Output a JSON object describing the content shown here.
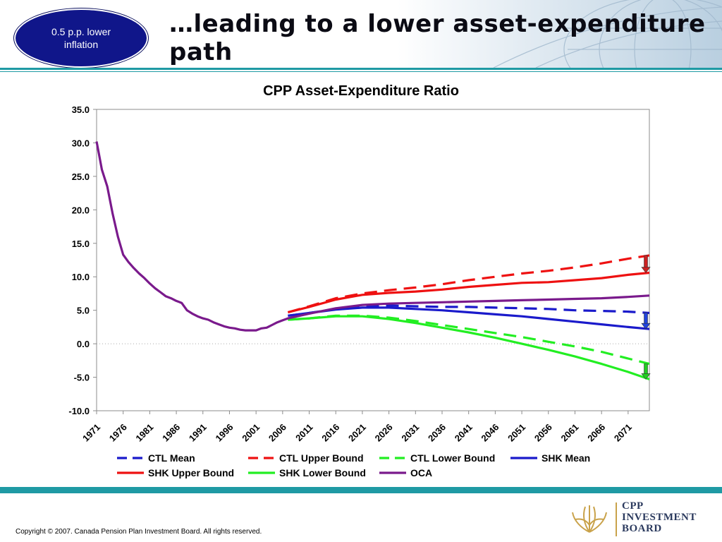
{
  "header": {
    "badge_text": "0.5 p.p. lower inflation",
    "title": "…leading to a lower asset-expenditure path"
  },
  "footer": {
    "copyright": "Copyright © 2007. Canada Pension Plan Investment Board. All rights reserved.",
    "logo_lines": [
      "CPP",
      "INVESTMENT",
      "BOARD"
    ]
  },
  "colors": {
    "accent_rule": "#1f9aa4",
    "badge": "#10168a",
    "ctl_mean": "#1a1acb",
    "ctl_upper": "#ee1111",
    "ctl_lower": "#22ee22",
    "shk_mean": "#1a1acb",
    "shk_upper": "#ee1111",
    "shk_lower": "#22ee22",
    "oca": "#7a1a8c",
    "arrow_red": "#cc2222",
    "arrow_blue": "#2244dd",
    "arrow_green": "#22cc22"
  },
  "chart_data": {
    "type": "line",
    "title": "CPP Asset-Expenditure Ratio",
    "xlabel": "",
    "ylabel": "",
    "ylim": [
      -10,
      35
    ],
    "yticks": [
      "35.0",
      "30.0",
      "25.0",
      "20.0",
      "15.0",
      "10.0",
      "5.0",
      "0.0",
      "-5.0",
      "-10.0"
    ],
    "xlim": [
      1971,
      2075
    ],
    "xticks": [
      "1971",
      "1976",
      "1981",
      "1986",
      "1991",
      "1996",
      "2001",
      "2006",
      "2011",
      "2016",
      "2021",
      "2026",
      "2031",
      "2036",
      "2041",
      "2046",
      "2051",
      "2056",
      "2061",
      "2066",
      "2071"
    ],
    "grid": "horizontal dotted at 0.0",
    "legend_position": "bottom",
    "series": [
      {
        "name": "CTL Mean",
        "style": "dashed",
        "color_key": "ctl_mean",
        "x": [
          2007,
          2011,
          2016,
          2021,
          2026,
          2031,
          2036,
          2041,
          2046,
          2051,
          2056,
          2061,
          2066,
          2071,
          2075
        ],
        "y": [
          4.2,
          4.6,
          5.2,
          5.6,
          5.7,
          5.6,
          5.5,
          5.5,
          5.4,
          5.3,
          5.2,
          5.0,
          4.9,
          4.8,
          4.6
        ]
      },
      {
        "name": "CTL Upper Bound",
        "style": "dashed",
        "color_key": "ctl_upper",
        "x": [
          2007,
          2011,
          2016,
          2021,
          2026,
          2031,
          2036,
          2041,
          2046,
          2051,
          2056,
          2061,
          2066,
          2071,
          2075
        ],
        "y": [
          4.7,
          5.6,
          6.8,
          7.5,
          8.0,
          8.4,
          8.9,
          9.5,
          10.0,
          10.5,
          10.9,
          11.4,
          12.0,
          12.7,
          13.2
        ]
      },
      {
        "name": "CTL Lower Bound",
        "style": "dashed",
        "color_key": "ctl_lower",
        "x": [
          2007,
          2011,
          2016,
          2021,
          2026,
          2031,
          2036,
          2041,
          2046,
          2051,
          2056,
          2061,
          2066,
          2071,
          2075
        ],
        "y": [
          3.6,
          3.8,
          4.2,
          4.2,
          3.9,
          3.4,
          2.8,
          2.2,
          1.6,
          1.0,
          0.3,
          -0.4,
          -1.2,
          -2.2,
          -3.0
        ]
      },
      {
        "name": "SHK Mean",
        "style": "solid",
        "color_key": "shk_mean",
        "x": [
          2007,
          2011,
          2016,
          2021,
          2026,
          2031,
          2036,
          2041,
          2046,
          2051,
          2056,
          2061,
          2066,
          2071,
          2075
        ],
        "y": [
          4.2,
          4.6,
          5.1,
          5.4,
          5.4,
          5.2,
          5.0,
          4.7,
          4.4,
          4.1,
          3.7,
          3.3,
          2.9,
          2.5,
          2.2
        ]
      },
      {
        "name": "SHK Upper Bound",
        "style": "solid",
        "color_key": "shk_upper",
        "x": [
          2007,
          2011,
          2016,
          2021,
          2026,
          2031,
          2036,
          2041,
          2046,
          2051,
          2056,
          2061,
          2066,
          2071,
          2075
        ],
        "y": [
          4.7,
          5.5,
          6.6,
          7.3,
          7.6,
          7.8,
          8.1,
          8.5,
          8.8,
          9.1,
          9.2,
          9.5,
          9.8,
          10.3,
          10.6
        ]
      },
      {
        "name": "SHK Lower Bound",
        "style": "solid",
        "color_key": "shk_lower",
        "x": [
          2007,
          2011,
          2016,
          2021,
          2026,
          2031,
          2036,
          2041,
          2046,
          2051,
          2056,
          2061,
          2066,
          2071,
          2075
        ],
        "y": [
          3.6,
          3.8,
          4.1,
          4.1,
          3.7,
          3.1,
          2.4,
          1.7,
          0.9,
          0.0,
          -0.9,
          -1.9,
          -3.0,
          -4.2,
          -5.3
        ]
      },
      {
        "name": "OCA",
        "style": "solid",
        "color_key": "oca",
        "x": [
          1971,
          1972,
          1973,
          1974,
          1975,
          1976,
          1977,
          1978,
          1979,
          1980,
          1981,
          1982,
          1983,
          1984,
          1985,
          1986,
          1987,
          1988,
          1989,
          1990,
          1991,
          1992,
          1993,
          1994,
          1995,
          1996,
          1997,
          1998,
          1999,
          2000,
          2001,
          2002,
          2003,
          2004,
          2005,
          2006,
          2007,
          2011,
          2016,
          2021,
          2026,
          2031,
          2036,
          2041,
          2046,
          2051,
          2056,
          2061,
          2066,
          2071,
          2075
        ],
        "y": [
          30.2,
          26.0,
          23.5,
          19.5,
          16.0,
          13.3,
          12.2,
          11.3,
          10.5,
          9.8,
          9.0,
          8.3,
          7.7,
          7.1,
          6.8,
          6.4,
          6.1,
          5.0,
          4.5,
          4.1,
          3.8,
          3.6,
          3.2,
          2.9,
          2.6,
          2.4,
          2.3,
          2.1,
          2.0,
          2.0,
          2.0,
          2.3,
          2.4,
          2.8,
          3.2,
          3.5,
          3.8,
          4.5,
          5.3,
          5.8,
          6.0,
          6.1,
          6.2,
          6.3,
          6.4,
          6.5,
          6.6,
          6.7,
          6.8,
          7.0,
          7.2
        ]
      }
    ],
    "annotations": [
      {
        "type": "arrow",
        "x": 2075,
        "from": 13.2,
        "to": 10.6,
        "color_key": "arrow_red"
      },
      {
        "type": "arrow",
        "x": 2075,
        "from": 4.6,
        "to": 2.2,
        "color_key": "arrow_blue"
      },
      {
        "type": "arrow",
        "x": 2075,
        "from": -3.0,
        "to": -5.3,
        "color_key": "arrow_green"
      }
    ]
  }
}
